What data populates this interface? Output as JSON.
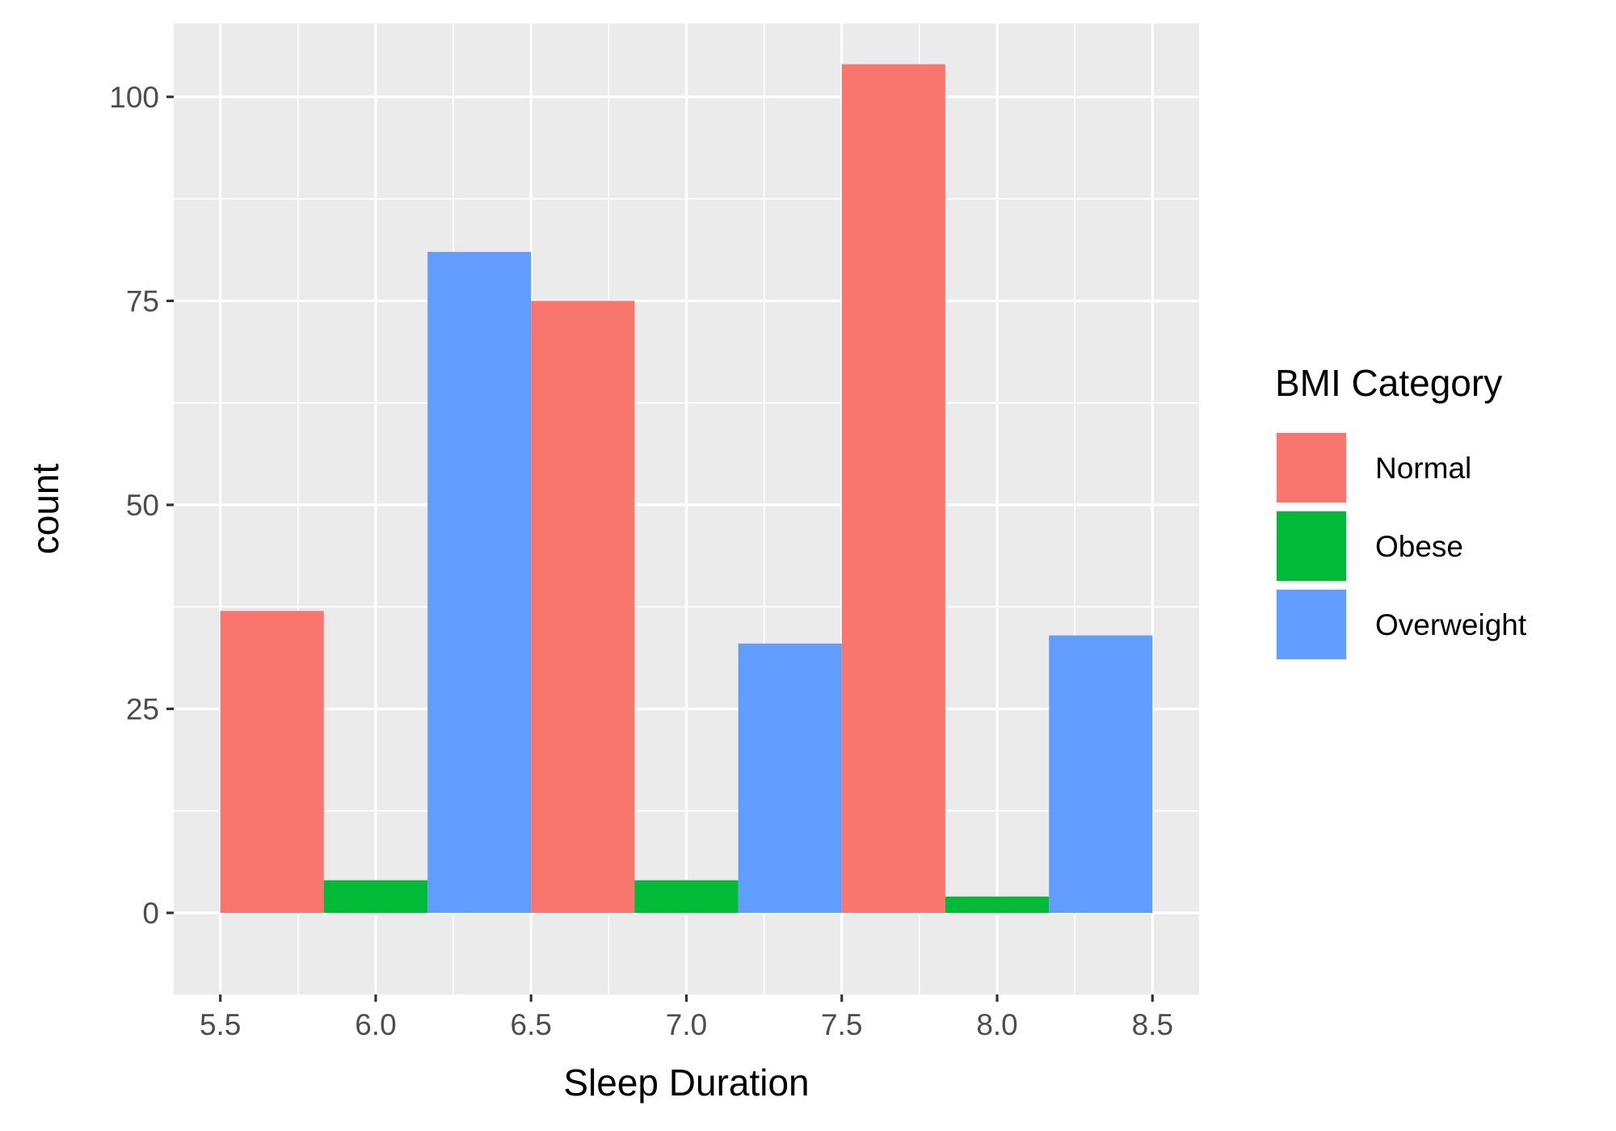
{
  "chart_data": {
    "type": "bar",
    "xlabel": "Sleep Duration",
    "ylabel": "count",
    "xlim": [
      5.35,
      8.65
    ],
    "ylim": [
      -10,
      109
    ],
    "x_ticks": [
      "5.5",
      "6.0",
      "6.5",
      "7.0",
      "7.5",
      "8.0",
      "8.5"
    ],
    "x_tick_values": [
      5.5,
      6.0,
      6.5,
      7.0,
      7.5,
      8.0,
      8.5
    ],
    "y_ticks": [
      "0",
      "25",
      "50",
      "75",
      "100"
    ],
    "y_tick_values": [
      0,
      25,
      50,
      75,
      100
    ],
    "grid": true,
    "legend": {
      "title": "BMI Category",
      "position": "right",
      "entries": [
        {
          "name": "Normal",
          "color": "#F8766D"
        },
        {
          "name": "Obese",
          "color": "#00BA38"
        },
        {
          "name": "Overweight",
          "color": "#619CFF"
        }
      ]
    },
    "bars": [
      {
        "xmin": 5.5,
        "xmax": 5.833,
        "category": "Normal",
        "value": 37
      },
      {
        "xmin": 5.833,
        "xmax": 6.167,
        "category": "Obese",
        "value": 4
      },
      {
        "xmin": 6.167,
        "xmax": 6.5,
        "category": "Overweight",
        "value": 81
      },
      {
        "xmin": 6.5,
        "xmax": 6.833,
        "category": "Normal",
        "value": 75
      },
      {
        "xmin": 6.833,
        "xmax": 7.167,
        "category": "Obese",
        "value": 4
      },
      {
        "xmin": 7.167,
        "xmax": 7.5,
        "category": "Overweight",
        "value": 33
      },
      {
        "xmin": 7.5,
        "xmax": 7.833,
        "category": "Normal",
        "value": 104
      },
      {
        "xmin": 7.833,
        "xmax": 8.167,
        "category": "Obese",
        "value": 2
      },
      {
        "xmin": 8.167,
        "xmax": 8.5,
        "category": "Overweight",
        "value": 34
      }
    ]
  }
}
